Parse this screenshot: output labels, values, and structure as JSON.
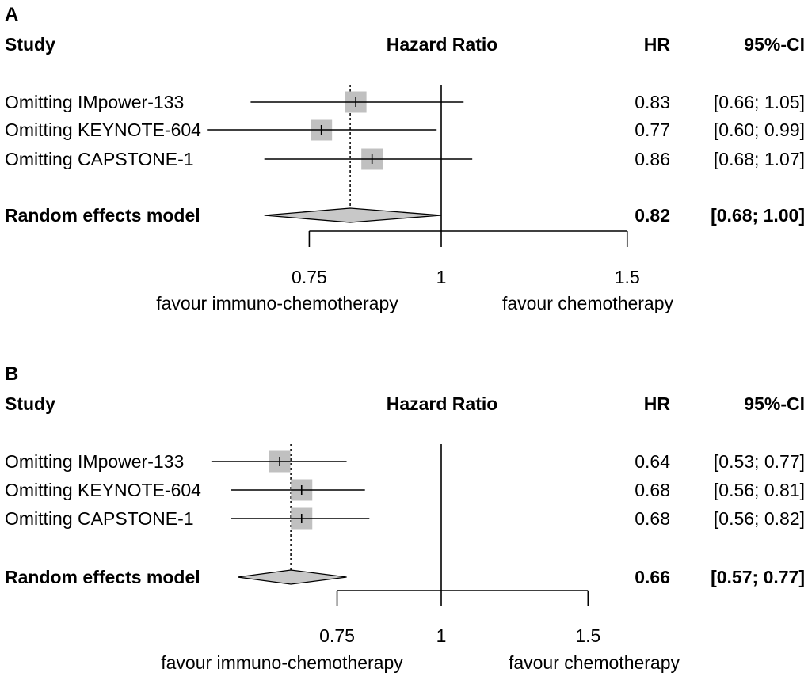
{
  "chart_data": [
    {
      "type": "forest",
      "panel_label": "A",
      "headers": {
        "study": "Study",
        "plot": "Hazard Ratio",
        "hr": "HR",
        "ci": "95%-CI"
      },
      "studies": [
        {
          "label": "Omitting IMpower-133",
          "hr": 0.83,
          "lower": 0.66,
          "upper": 1.05,
          "hr_text": "0.83",
          "ci_text": "[0.66; 1.05]"
        },
        {
          "label": "Omitting KEYNOTE-604",
          "hr": 0.77,
          "lower": 0.6,
          "upper": 0.99,
          "hr_text": "0.77",
          "ci_text": "[0.60; 0.99]"
        },
        {
          "label": "Omitting CAPSTONE-1",
          "hr": 0.86,
          "lower": 0.68,
          "upper": 1.07,
          "hr_text": "0.86",
          "ci_text": "[0.68; 1.07]"
        }
      ],
      "summary": {
        "label": "Random effects model",
        "hr": 0.82,
        "lower": 0.68,
        "upper": 1.0,
        "hr_text": "0.82",
        "ci_text": "[0.68; 1.00]"
      },
      "x_scale": "log",
      "x_axis_range": [
        0.75,
        1.5
      ],
      "x_ticks": [
        {
          "value": 0.75,
          "label": "0.75"
        },
        {
          "value": 1,
          "label": "1"
        },
        {
          "value": 1.5,
          "label": "1.5"
        }
      ],
      "reference_line": 1,
      "favour_left": "favour immuno-chemotherapy",
      "favour_right": "favour chemotherapy"
    },
    {
      "type": "forest",
      "panel_label": "B",
      "headers": {
        "study": "Study",
        "plot": "Hazard Ratio",
        "hr": "HR",
        "ci": "95%-CI"
      },
      "studies": [
        {
          "label": "Omitting IMpower-133",
          "hr": 0.64,
          "lower": 0.53,
          "upper": 0.77,
          "hr_text": "0.64",
          "ci_text": "[0.53; 0.77]"
        },
        {
          "label": "Omitting KEYNOTE-604",
          "hr": 0.68,
          "lower": 0.56,
          "upper": 0.81,
          "hr_text": "0.68",
          "ci_text": "[0.56; 0.81]"
        },
        {
          "label": "Omitting CAPSTONE-1",
          "hr": 0.68,
          "lower": 0.56,
          "upper": 0.82,
          "hr_text": "0.68",
          "ci_text": "[0.56; 0.82]"
        }
      ],
      "summary": {
        "label": "Random effects model",
        "hr": 0.66,
        "lower": 0.57,
        "upper": 0.77,
        "hr_text": "0.66",
        "ci_text": "[0.57; 0.77]"
      },
      "x_scale": "log",
      "x_axis_range": [
        0.75,
        1.5
      ],
      "x_ticks": [
        {
          "value": 0.75,
          "label": "0.75"
        },
        {
          "value": 1,
          "label": "1"
        },
        {
          "value": 1.5,
          "label": "1.5"
        }
      ],
      "reference_line": 1,
      "favour_left": "favour immuno-chemotherapy",
      "favour_right": "favour chemotherapy"
    }
  ],
  "colors": {
    "marker": "#c0c0c0",
    "diamond": "#c8c8c8",
    "line": "#000000"
  }
}
